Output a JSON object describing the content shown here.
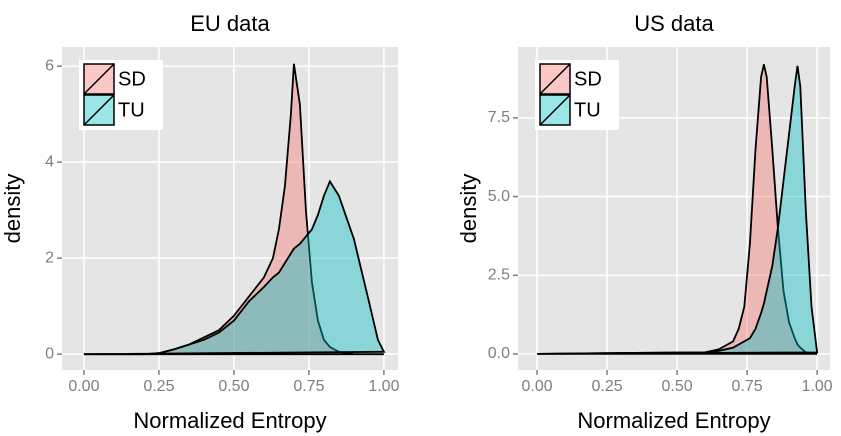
{
  "chart_data": [
    {
      "type": "area",
      "title": "EU data",
      "x_label": "Normalized Entropy",
      "y_label": "density",
      "x": [
        0,
        0.1,
        0.2,
        0.25,
        0.3,
        0.35,
        0.4,
        0.45,
        0.5,
        0.55,
        0.6,
        0.63,
        0.65,
        0.67,
        0.69,
        0.7,
        0.72,
        0.74,
        0.76,
        0.78,
        0.8,
        0.82,
        0.85,
        0.9,
        0.95,
        0.98,
        1.0
      ],
      "series": [
        {
          "name": "SD",
          "color": "#F8766D",
          "values": [
            0,
            0,
            0,
            0.02,
            0.1,
            0.2,
            0.35,
            0.5,
            0.8,
            1.2,
            1.6,
            2.0,
            2.6,
            3.5,
            5.0,
            6.05,
            5.2,
            3.0,
            1.5,
            0.7,
            0.3,
            0.15,
            0.05,
            0,
            0,
            0,
            0
          ]
        },
        {
          "name": "TU",
          "color": "#00BFC4",
          "values": [
            0,
            0,
            0,
            0.02,
            0.1,
            0.2,
            0.3,
            0.45,
            0.7,
            1.1,
            1.4,
            1.6,
            1.7,
            1.9,
            2.1,
            2.2,
            2.3,
            2.45,
            2.6,
            2.9,
            3.3,
            3.6,
            3.3,
            2.4,
            1.1,
            0.3,
            0.05
          ]
        }
      ],
      "xlim": [
        -0.073,
        1.047
      ],
      "ylim": [
        -0.33,
        6.4
      ],
      "xticks": [
        {
          "value": 0,
          "label": "0.00"
        },
        {
          "value": 0.25,
          "label": "0.25"
        },
        {
          "value": 0.5,
          "label": "0.50"
        },
        {
          "value": 0.75,
          "label": "0.75"
        },
        {
          "value": 1,
          "label": "1.00"
        }
      ],
      "yticks": [
        0,
        2,
        4,
        6
      ],
      "grid": true,
      "legend": "top-left"
    },
    {
      "type": "area",
      "title": "US data",
      "x_label": "Normalized Entropy",
      "y_label": "density",
      "x": [
        0,
        0.3,
        0.6,
        0.65,
        0.7,
        0.72,
        0.74,
        0.76,
        0.78,
        0.8,
        0.81,
        0.82,
        0.84,
        0.86,
        0.88,
        0.9,
        0.92,
        0.93,
        0.94,
        0.96,
        0.98,
        1.0
      ],
      "series": [
        {
          "name": "SD",
          "color": "#F8766D",
          "values": [
            0,
            0.03,
            0.05,
            0.15,
            0.4,
            0.8,
            1.5,
            3.5,
            6.5,
            8.8,
            9.2,
            8.8,
            6.5,
            4.0,
            2.0,
            1.0,
            0.5,
            0.3,
            0.2,
            0.05,
            0,
            0
          ]
        },
        {
          "name": "TU",
          "color": "#00BFC4",
          "values": [
            0,
            0.03,
            0.05,
            0.1,
            0.2,
            0.3,
            0.4,
            0.5,
            0.8,
            1.3,
            1.6,
            2.0,
            2.8,
            4.0,
            5.5,
            7.0,
            8.5,
            9.15,
            8.5,
            4.5,
            1.5,
            0.05
          ]
        }
      ],
      "xlim": [
        -0.068,
        1.046
      ],
      "ylim": [
        -0.51,
        9.75
      ],
      "xticks": [
        {
          "value": 0,
          "label": "0.00"
        },
        {
          "value": 0.25,
          "label": "0.25"
        },
        {
          "value": 0.5,
          "label": "0.50"
        },
        {
          "value": 0.75,
          "label": "0.75"
        },
        {
          "value": 1,
          "label": "1.00"
        }
      ],
      "yticks": [
        {
          "value": 0,
          "label": "0.0"
        },
        {
          "value": 2.5,
          "label": "2.5"
        },
        {
          "value": 5,
          "label": "5.0"
        },
        {
          "value": 7.5,
          "label": "7.5"
        }
      ],
      "grid": true,
      "legend": "top-left"
    }
  ]
}
